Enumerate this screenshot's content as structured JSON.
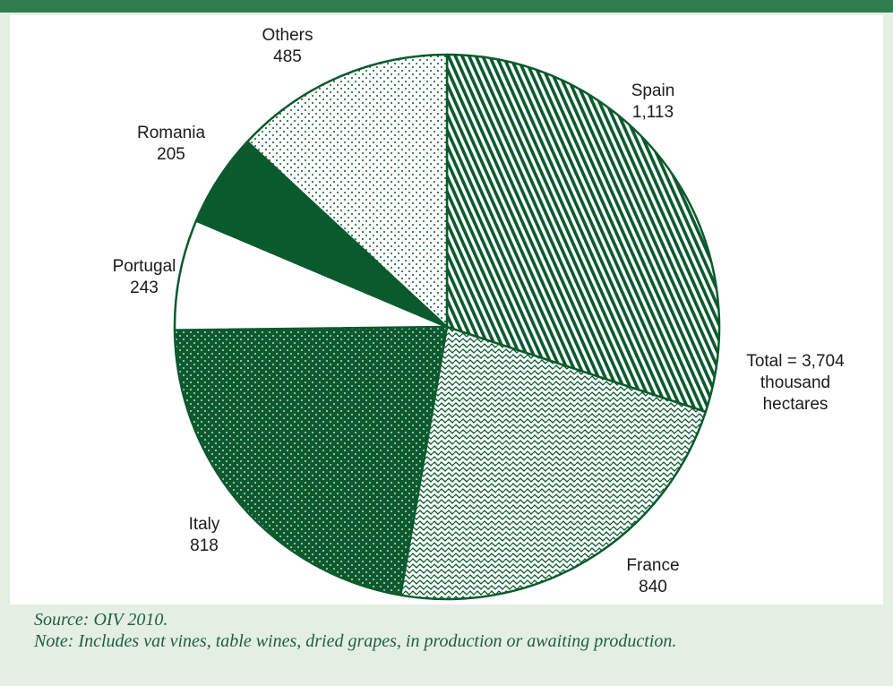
{
  "chart_data": {
    "type": "pie",
    "categories": [
      "Spain",
      "France",
      "Italy",
      "Portugal",
      "Romania",
      "Others"
    ],
    "values": [
      1113,
      840,
      818,
      243,
      205,
      485
    ],
    "value_labels": [
      "1,113",
      "840",
      "818",
      "243",
      "205",
      "485"
    ],
    "total_annotation": [
      "Total = 3,704",
      "thousand",
      "hectares"
    ],
    "start_angle_deg": 0,
    "direction": "clockwise",
    "colors": {
      "primary": "#0b5a2e",
      "white": "#ffffff",
      "header": "#2f7d4e",
      "background": "#e4efe4"
    },
    "fills": [
      "diagonal-stripes",
      "wavy-lines",
      "dotted-green",
      "solid-white",
      "solid-green",
      "dotted-white"
    ]
  },
  "footer": {
    "source": "Source: OIV 2010.",
    "note": "Note: Includes vat vines, table wines, dried grapes, in production or awaiting production."
  }
}
